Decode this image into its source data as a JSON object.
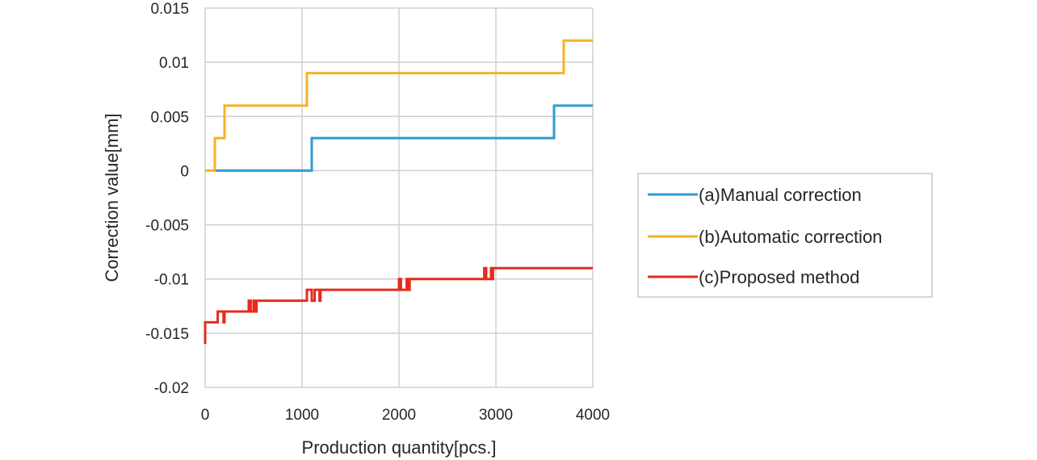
{
  "chart_data": {
    "type": "line",
    "xlabel": "Production quantity[pcs.]",
    "ylabel": "Correction value[mm]",
    "xlim": [
      0,
      4000
    ],
    "ylim": [
      -0.02,
      0.015
    ],
    "x_ticks": [
      "0",
      "1000",
      "2000",
      "3000",
      "4000"
    ],
    "y_ticks": [
      "0.015",
      "0.01",
      "0.005",
      "0",
      "-0.005",
      "-0.01",
      "-0.015",
      "-0.02"
    ],
    "grid": true,
    "legend_position": "right",
    "series": [
      {
        "name": "(a)Manual correction",
        "color": "#2e9bd6",
        "step": true,
        "points": [
          [
            100,
            0
          ],
          [
            1100,
            0
          ],
          [
            1100,
            0.003
          ],
          [
            3600,
            0.003
          ],
          [
            3600,
            0.006
          ],
          [
            4000,
            0.006
          ]
        ]
      },
      {
        "name": "(b)Automatic correction",
        "color": "#f5b324",
        "step": true,
        "points": [
          [
            0,
            0
          ],
          [
            100,
            0
          ],
          [
            100,
            0.003
          ],
          [
            200,
            0.003
          ],
          [
            200,
            0.006
          ],
          [
            1050,
            0.006
          ],
          [
            1050,
            0.009
          ],
          [
            3700,
            0.009
          ],
          [
            3700,
            0.012
          ],
          [
            4000,
            0.012
          ]
        ]
      },
      {
        "name": "(c)Proposed method",
        "color": "#e52b1f",
        "step": true,
        "points": [
          [
            0,
            -0.016
          ],
          [
            0,
            -0.014
          ],
          [
            100,
            -0.014
          ],
          [
            130,
            -0.014
          ],
          [
            130,
            -0.013
          ],
          [
            190,
            -0.013
          ],
          [
            190,
            -0.014
          ],
          [
            200,
            -0.014
          ],
          [
            200,
            -0.013
          ],
          [
            450,
            -0.013
          ],
          [
            450,
            -0.012
          ],
          [
            470,
            -0.012
          ],
          [
            470,
            -0.013
          ],
          [
            500,
            -0.013
          ],
          [
            500,
            -0.012
          ],
          [
            520,
            -0.012
          ],
          [
            520,
            -0.013
          ],
          [
            530,
            -0.013
          ],
          [
            530,
            -0.012
          ],
          [
            1050,
            -0.012
          ],
          [
            1050,
            -0.011
          ],
          [
            1100,
            -0.011
          ],
          [
            1100,
            -0.012
          ],
          [
            1130,
            -0.012
          ],
          [
            1130,
            -0.011
          ],
          [
            1180,
            -0.011
          ],
          [
            1180,
            -0.012
          ],
          [
            1190,
            -0.012
          ],
          [
            1190,
            -0.011
          ],
          [
            2000,
            -0.011
          ],
          [
            2000,
            -0.01
          ],
          [
            2020,
            -0.01
          ],
          [
            2020,
            -0.011
          ],
          [
            2080,
            -0.011
          ],
          [
            2080,
            -0.01
          ],
          [
            2100,
            -0.01
          ],
          [
            2100,
            -0.011
          ],
          [
            2110,
            -0.011
          ],
          [
            2110,
            -0.01
          ],
          [
            2880,
            -0.01
          ],
          [
            2880,
            -0.009
          ],
          [
            2900,
            -0.009
          ],
          [
            2900,
            -0.01
          ],
          [
            2950,
            -0.01
          ],
          [
            2950,
            -0.009
          ],
          [
            2960,
            -0.009
          ],
          [
            2960,
            -0.01
          ],
          [
            2970,
            -0.01
          ],
          [
            2970,
            -0.009
          ],
          [
            4000,
            -0.009
          ]
        ]
      }
    ]
  }
}
